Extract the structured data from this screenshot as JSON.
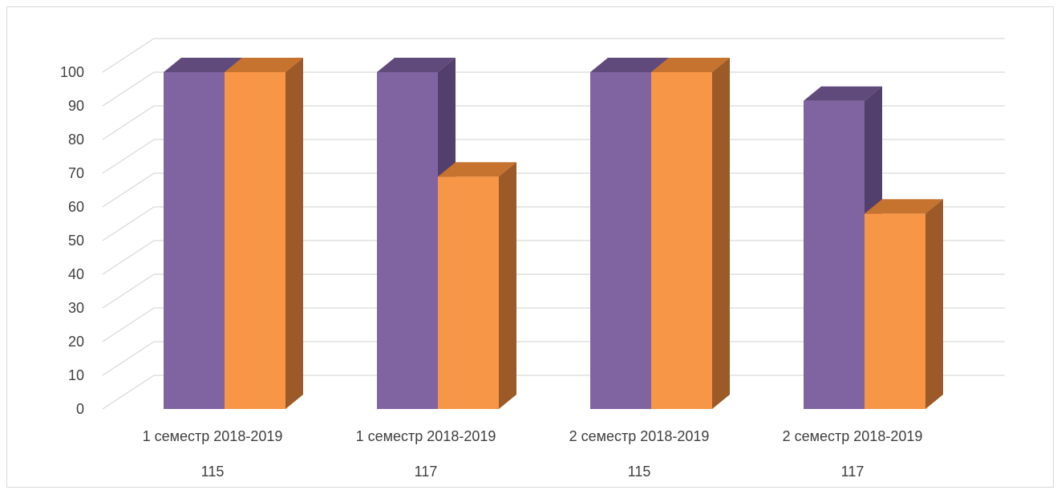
{
  "chart_data": {
    "type": "bar",
    "three_d": true,
    "categories": [
      {
        "line1": "1 семестр 2018-2019",
        "line2": "115"
      },
      {
        "line1": "1 семестр 2018-2019",
        "line2": "117"
      },
      {
        "line1": "2 семестр 2018-2019",
        "line2": "115"
      },
      {
        "line1": "2 семестр 2018-2019",
        "line2": "117"
      }
    ],
    "series": [
      {
        "values": [
          100,
          100,
          100,
          91.5
        ],
        "color": "#8064a2",
        "top_color": "#604a7b",
        "side_color": "#533f6b"
      },
      {
        "values": [
          100,
          69,
          100,
          58
        ],
        "color": "#f79646",
        "top_color": "#c5732f",
        "side_color": "#9c5a28"
      }
    ],
    "ylim": [
      0,
      100
    ],
    "y_ticks": [
      0,
      10,
      20,
      30,
      40,
      50,
      60,
      70,
      80,
      90,
      100
    ],
    "grid": true,
    "legend": "none",
    "title": "",
    "xlabel": "",
    "ylabel": ""
  }
}
